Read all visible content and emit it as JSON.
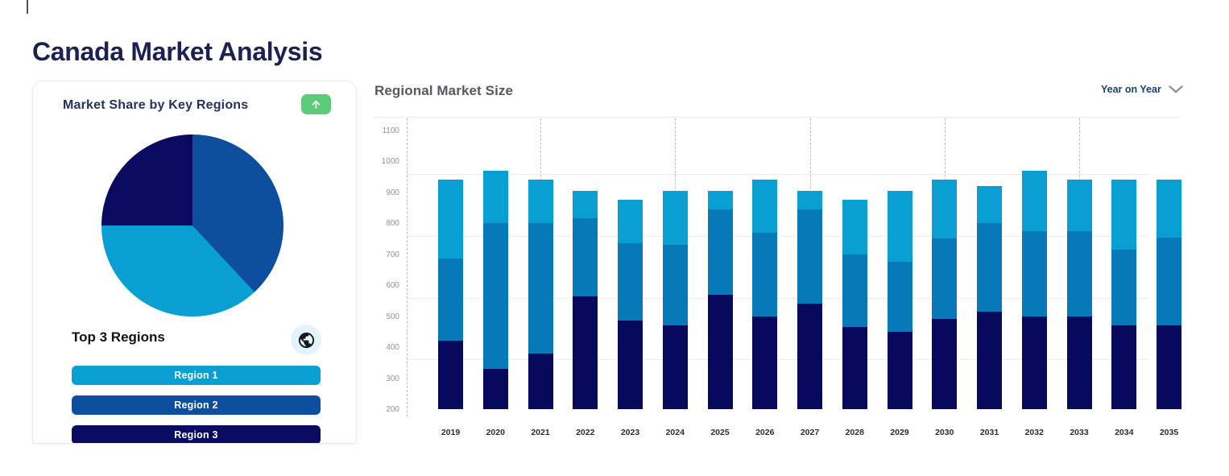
{
  "page": {
    "title": "Canada Market Analysis"
  },
  "market_share_card": {
    "title": "Market Share by Key Regions",
    "trend_button": {
      "icon": "arrow-up-icon",
      "color": "#5ecb7a"
    },
    "subtitle": "Top 3 Regions",
    "globe_icon": "globe-icon",
    "globe_badge_bg": "#e3f3fb",
    "regions": [
      {
        "label": "Region 1",
        "color": "#099fd3"
      },
      {
        "label": "Region 2",
        "color": "#0d4f9e"
      },
      {
        "label": "Region 3",
        "color": "#0a0a61"
      }
    ]
  },
  "regional_chart": {
    "title": "Regional Market Size",
    "dropdown_label": "Year on Year",
    "dropdown_icon": "chevron-down-icon"
  },
  "chart_data": [
    {
      "type": "pie",
      "title": "Market Share by Key Regions",
      "legend_position": "none",
      "slices": [
        {
          "label": "Region 2",
          "color": "#0d4f9e",
          "start_deg": 0,
          "end_deg": 137,
          "approx_share_pct": 38
        },
        {
          "label": "Region 1",
          "color": "#099fd3",
          "start_deg": 137,
          "end_deg": 270,
          "approx_share_pct": 37
        },
        {
          "label": "Region 3",
          "color": "#0a0a61",
          "start_deg": 270,
          "end_deg": 360,
          "approx_share_pct": 25
        }
      ]
    },
    {
      "type": "bar",
      "stacked": true,
      "title": "Regional Market Size",
      "xlabel": "",
      "ylabel": "",
      "categories": [
        "2019",
        "2020",
        "2021",
        "2022",
        "2023",
        "2024",
        "2025",
        "2026",
        "2027",
        "2028",
        "2029",
        "2030",
        "2031",
        "2032",
        "2033",
        "2034",
        "2035"
      ],
      "axis_min": 200,
      "ylim": [
        200,
        1150
      ],
      "yticks": [
        200,
        300,
        400,
        500,
        600,
        700,
        800,
        900,
        1000,
        1100
      ],
      "gridlines_at": [
        960,
        760,
        560,
        360
      ],
      "dashed_guides_at_years": [
        "2021",
        "2024",
        "2027",
        "2030",
        "2033"
      ],
      "note": "Bars rise from the axis minimum of 200. Values below are the cumulative stack-top readings per segment.",
      "series": [
        {
          "name": "Region 3",
          "color": "#070a5c",
          "stack_top": [
            420,
            330,
            380,
            565,
            485,
            470,
            570,
            500,
            540,
            465,
            450,
            490,
            515,
            500,
            500,
            470,
            470
          ]
        },
        {
          "name": "Region 2",
          "color": "#0879b8",
          "stack_top": [
            685,
            800,
            800,
            815,
            735,
            730,
            845,
            770,
            845,
            700,
            675,
            750,
            800,
            775,
            775,
            715,
            755
          ]
        },
        {
          "name": "Region 1",
          "color": "#099fd3",
          "stack_top": [
            940,
            970,
            940,
            905,
            875,
            905,
            905,
            940,
            905,
            875,
            905,
            940,
            920,
            970,
            940,
            940,
            940
          ]
        }
      ]
    }
  ]
}
